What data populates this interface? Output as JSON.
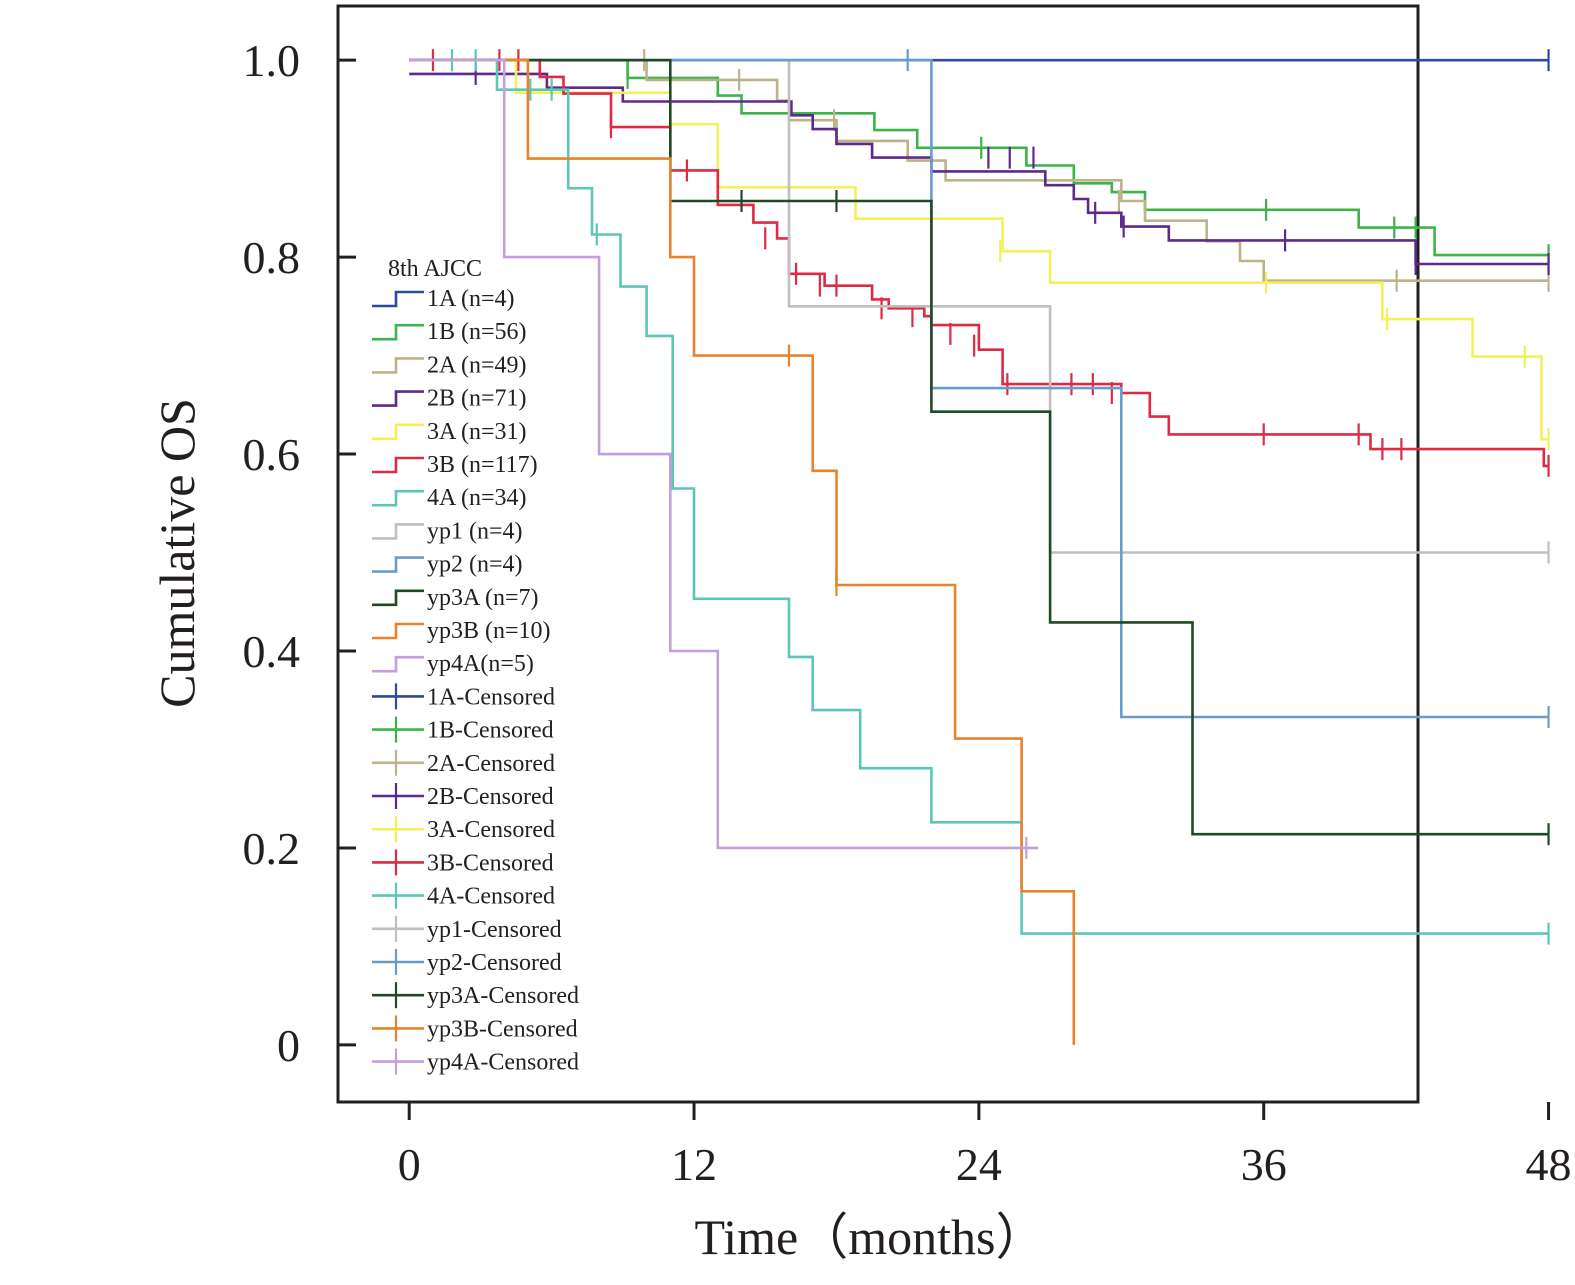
{
  "chart_data": {
    "type": "line",
    "subtype": "kaplan-meier",
    "title": "",
    "xlabel": "Time（months）",
    "ylabel": "Cumulative OS",
    "xlim": [
      -3,
      42.5
    ],
    "ylim": [
      -0.058,
      1.055
    ],
    "xticks": [
      0,
      12,
      24,
      36,
      48
    ],
    "yticks": [
      0,
      0.2,
      0.4,
      0.6,
      0.8,
      1.0
    ],
    "ytick_labels": [
      "0",
      "0.2",
      "0.4",
      "0.6",
      "0.8",
      "1.0"
    ],
    "grid": false,
    "legend_title": "8th AJCC",
    "legend_position": "left-center",
    "series": [
      {
        "name": "1A",
        "label": "1A (n=4)",
        "color": "#2e4a9e",
        "steps": [
          [
            0,
            1.0
          ],
          [
            48,
            1.0
          ]
        ],
        "censored": [
          [
            48,
            1.0
          ]
        ]
      },
      {
        "name": "1B",
        "label": "1B (n=56)",
        "color": "#3cb44a",
        "steps": [
          [
            0,
            1.0
          ],
          [
            9.2,
            0.982
          ],
          [
            13,
            0.964
          ],
          [
            14,
            0.946
          ],
          [
            19.6,
            0.929
          ],
          [
            21.4,
            0.911
          ],
          [
            26,
            0.893
          ],
          [
            28,
            0.875
          ],
          [
            29.6,
            0.866
          ],
          [
            31,
            0.848
          ],
          [
            40,
            0.83
          ],
          [
            43.2,
            0.802
          ],
          [
            48,
            0.802
          ]
        ],
        "censored": [
          [
            9.2,
            0.982
          ],
          [
            24.1,
            0.911
          ],
          [
            36.1,
            0.848
          ],
          [
            41.5,
            0.83
          ],
          [
            42.4,
            0.83
          ],
          [
            48,
            0.802
          ]
        ]
      },
      {
        "name": "2A",
        "label": "2A (n=49)",
        "color": "#bdb28a",
        "steps": [
          [
            0,
            1.0
          ],
          [
            10,
            0.98
          ],
          [
            15.5,
            0.959
          ],
          [
            16,
            0.939
          ],
          [
            18,
            0.918
          ],
          [
            21,
            0.898
          ],
          [
            22.6,
            0.878
          ],
          [
            23,
            0.878
          ],
          [
            30,
            0.857
          ],
          [
            31,
            0.837
          ],
          [
            33.6,
            0.816
          ],
          [
            35,
            0.796
          ],
          [
            36,
            0.776
          ],
          [
            48,
            0.776
          ]
        ],
        "censored": [
          [
            9.9,
            1.0
          ],
          [
            13.9,
            0.98
          ],
          [
            17.9,
            0.939
          ],
          [
            29.9,
            0.857
          ],
          [
            41.6,
            0.776
          ],
          [
            48,
            0.776
          ]
        ]
      },
      {
        "name": "2B",
        "label": "2B (n=71)",
        "color": "#5c2a8c",
        "steps": [
          [
            0,
            0.986
          ],
          [
            5.8,
            0.972
          ],
          [
            9,
            0.958
          ],
          [
            11,
            0.958
          ],
          [
            16.1,
            0.944
          ],
          [
            17,
            0.93
          ],
          [
            18,
            0.915
          ],
          [
            19.5,
            0.901
          ],
          [
            22,
            0.887
          ],
          [
            24.5,
            0.887
          ],
          [
            26.8,
            0.873
          ],
          [
            28,
            0.859
          ],
          [
            28.6,
            0.845
          ],
          [
            30,
            0.831
          ],
          [
            32,
            0.817
          ],
          [
            42.4,
            0.793
          ],
          [
            48,
            0.793
          ]
        ],
        "censored": [
          [
            2.8,
            0.986
          ],
          [
            24.4,
            0.901
          ],
          [
            25.3,
            0.901
          ],
          [
            26.3,
            0.901
          ],
          [
            28.9,
            0.845
          ],
          [
            30.1,
            0.831
          ],
          [
            36.9,
            0.817
          ],
          [
            42.4,
            0.793
          ],
          [
            48,
            0.793
          ]
        ]
      },
      {
        "name": "3A",
        "label": "3A (n=31)",
        "color": "#f3f05c",
        "steps": [
          [
            0,
            1.0
          ],
          [
            4.5,
            0.967
          ],
          [
            10,
            0.967
          ],
          [
            11,
            0.935
          ],
          [
            13,
            0.871
          ],
          [
            18.8,
            0.839
          ],
          [
            25,
            0.806
          ],
          [
            27,
            0.774
          ],
          [
            41,
            0.737
          ],
          [
            44.8,
            0.699
          ],
          [
            47.7,
            0.615
          ],
          [
            48,
            0.615
          ]
        ],
        "censored": [
          [
            24.9,
            0.806
          ],
          [
            36.1,
            0.774
          ],
          [
            41.2,
            0.737
          ],
          [
            47,
            0.699
          ],
          [
            48,
            0.615
          ]
        ]
      },
      {
        "name": "3B",
        "label": "3B (n=117)",
        "color": "#de2a45",
        "steps": [
          [
            0,
            1.0
          ],
          [
            5.5,
            0.983
          ],
          [
            6.5,
            0.966
          ],
          [
            8.5,
            0.932
          ],
          [
            11,
            0.888
          ],
          [
            13,
            0.853
          ],
          [
            14.5,
            0.835
          ],
          [
            15.5,
            0.819
          ],
          [
            16,
            0.783
          ],
          [
            17.5,
            0.771
          ],
          [
            19.5,
            0.757
          ],
          [
            20.2,
            0.748
          ],
          [
            21.7,
            0.74
          ],
          [
            22,
            0.731
          ],
          [
            24,
            0.706
          ],
          [
            25,
            0.671
          ],
          [
            30,
            0.662
          ],
          [
            31.2,
            0.638
          ],
          [
            32,
            0.62
          ],
          [
            40.5,
            0.605
          ],
          [
            47.8,
            0.588
          ],
          [
            48,
            0.588
          ]
        ],
        "censored": [
          [
            1,
            1.0
          ],
          [
            3.8,
            1.0
          ],
          [
            4.6,
            1.0
          ],
          [
            8.5,
            0.932
          ],
          [
            11.7,
            0.888
          ],
          [
            15,
            0.819
          ],
          [
            16.3,
            0.783
          ],
          [
            17.3,
            0.771
          ],
          [
            18,
            0.771
          ],
          [
            19.9,
            0.748
          ],
          [
            21.2,
            0.74
          ],
          [
            22.8,
            0.722
          ],
          [
            23.8,
            0.71
          ],
          [
            25.2,
            0.671
          ],
          [
            27.9,
            0.671
          ],
          [
            28.8,
            0.671
          ],
          [
            29.6,
            0.662
          ],
          [
            36,
            0.62
          ],
          [
            40,
            0.62
          ],
          [
            41,
            0.605
          ],
          [
            41.8,
            0.605
          ],
          [
            48,
            0.588
          ]
        ]
      },
      {
        "name": "4A",
        "label": "4A (n=34)",
        "color": "#5cc6b8",
        "steps": [
          [
            0,
            1.0
          ],
          [
            3.7,
            0.97
          ],
          [
            6.7,
            0.87
          ],
          [
            7.7,
            0.823
          ],
          [
            8.9,
            0.77
          ],
          [
            10,
            0.72
          ],
          [
            11.1,
            0.565
          ],
          [
            12,
            0.453
          ],
          [
            16,
            0.394
          ],
          [
            17,
            0.34
          ],
          [
            19,
            0.281
          ],
          [
            22,
            0.226
          ],
          [
            25.8,
            0.113
          ],
          [
            48,
            0.113
          ]
        ],
        "censored": [
          [
            1.8,
            1.0
          ],
          [
            2.8,
            1.0
          ],
          [
            5.1,
            0.97
          ],
          [
            6,
            0.97
          ],
          [
            7.9,
            0.823
          ],
          [
            48,
            0.113
          ]
        ]
      },
      {
        "name": "yp1",
        "label": "yp1 (n=4)",
        "color": "#bfbfbf",
        "steps": [
          [
            0,
            1.0
          ],
          [
            16,
            0.75
          ],
          [
            27,
            0.5
          ],
          [
            48,
            0.5
          ]
        ],
        "censored": [
          [
            48,
            0.5
          ]
        ]
      },
      {
        "name": "yp2",
        "label": "yp2 (n=4)",
        "color": "#6b9bc8",
        "steps": [
          [
            0,
            1.0
          ],
          [
            22,
            0.667
          ],
          [
            30,
            0.333
          ],
          [
            48,
            0.333
          ]
        ],
        "censored": [
          [
            21,
            1.0
          ],
          [
            48,
            0.333
          ]
        ]
      },
      {
        "name": "yp3A",
        "label": "yp3A (n=7)",
        "color": "#1f4a24",
        "steps": [
          [
            0,
            1.0
          ],
          [
            11,
            0.857
          ],
          [
            22,
            0.643
          ],
          [
            27,
            0.429
          ],
          [
            33,
            0.214
          ],
          [
            48,
            0.214
          ]
        ],
        "censored": [
          [
            14,
            0.857
          ],
          [
            18,
            0.857
          ],
          [
            48,
            0.214
          ]
        ]
      },
      {
        "name": "yp3B",
        "label": "yp3B (n=10)",
        "color": "#e8832b",
        "steps": [
          [
            0,
            1.0
          ],
          [
            5,
            0.9
          ],
          [
            11,
            0.8
          ],
          [
            12,
            0.7
          ],
          [
            17,
            0.583
          ],
          [
            18,
            0.467
          ],
          [
            23,
            0.311
          ],
          [
            25.8,
            0.156
          ],
          [
            28,
            0.0
          ]
        ],
        "censored": [
          [
            16,
            0.7
          ],
          [
            18,
            0.467
          ]
        ]
      },
      {
        "name": "yp4A",
        "label": "yp4A(n=5)",
        "color": "#c39fdc",
        "steps": [
          [
            0,
            1.0
          ],
          [
            4,
            0.8
          ],
          [
            8,
            0.6
          ],
          [
            11,
            0.4
          ],
          [
            13,
            0.2
          ],
          [
            26.5,
            0.2
          ]
        ],
        "censored": [
          [
            26,
            0.2
          ]
        ]
      }
    ],
    "censored_legend": [
      {
        "label": "1A-Censored",
        "color": "#2e4a9e"
      },
      {
        "label": "1B-Censored",
        "color": "#3cb44a"
      },
      {
        "label": "2A-Censored",
        "color": "#bdb28a"
      },
      {
        "label": "2B-Censored",
        "color": "#5c2a8c"
      },
      {
        "label": "3A-Censored",
        "color": "#f3f05c"
      },
      {
        "label": "3B-Censored",
        "color": "#de2a45"
      },
      {
        "label": "4A-Censored",
        "color": "#5cc6b8"
      },
      {
        "label": "yp1-Censored",
        "color": "#bfbfbf"
      },
      {
        "label": "yp2-Censored",
        "color": "#6b9bc8"
      },
      {
        "label": "yp3A-Censored",
        "color": "#1f4a24"
      },
      {
        "label": "yp3B-Censored",
        "color": "#e8832b"
      },
      {
        "label": "yp4A-Censored",
        "color": "#c39fdc"
      }
    ]
  }
}
